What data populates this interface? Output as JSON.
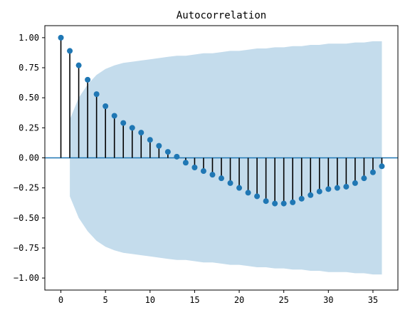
{
  "chart_data": {
    "type": "stem",
    "title": "Autocorrelation",
    "xlabel": "",
    "ylabel": "",
    "xlim": [
      -1.8,
      37.8
    ],
    "ylim": [
      -1.1,
      1.1
    ],
    "x_ticks": [
      0,
      5,
      10,
      15,
      20,
      25,
      30,
      35
    ],
    "x_tick_labels": [
      "0",
      "5",
      "10",
      "15",
      "20",
      "25",
      "30",
      "35"
    ],
    "y_ticks": [
      1.0,
      0.75,
      0.5,
      0.25,
      0.0,
      -0.25,
      -0.5,
      -0.75,
      -1.0
    ],
    "y_tick_labels": [
      "1.00",
      "0.75",
      "0.50",
      "0.25",
      "0.00",
      "−0.25",
      "−0.50",
      "−0.75",
      "−1.00"
    ],
    "lags": [
      0,
      1,
      2,
      3,
      4,
      5,
      6,
      7,
      8,
      9,
      10,
      11,
      12,
      13,
      14,
      15,
      16,
      17,
      18,
      19,
      20,
      21,
      22,
      23,
      24,
      25,
      26,
      27,
      28,
      29,
      30,
      31,
      32,
      33,
      34,
      35,
      36
    ],
    "acf": [
      1.0,
      0.89,
      0.77,
      0.65,
      0.53,
      0.43,
      0.35,
      0.29,
      0.25,
      0.21,
      0.15,
      0.1,
      0.05,
      0.01,
      -0.04,
      -0.08,
      -0.11,
      -0.14,
      -0.17,
      -0.21,
      -0.25,
      -0.29,
      -0.32,
      -0.36,
      -0.38,
      -0.38,
      -0.37,
      -0.34,
      -0.31,
      -0.28,
      -0.26,
      -0.25,
      -0.24,
      -0.21,
      -0.17,
      -0.12,
      -0.07
    ],
    "confint_upper": [
      null,
      0.32,
      0.5,
      0.61,
      0.69,
      0.74,
      0.77,
      0.79,
      0.8,
      0.81,
      0.82,
      0.83,
      0.84,
      0.85,
      0.85,
      0.86,
      0.87,
      0.87,
      0.88,
      0.89,
      0.89,
      0.9,
      0.91,
      0.91,
      0.92,
      0.92,
      0.93,
      0.93,
      0.94,
      0.94,
      0.95,
      0.95,
      0.95,
      0.96,
      0.96,
      0.97,
      0.97
    ],
    "zero_line": 0,
    "colors": {
      "marker": "#1f77b4",
      "stem": "#000000",
      "band": "#c4dcec",
      "zero_line": "#1f77b4"
    }
  }
}
